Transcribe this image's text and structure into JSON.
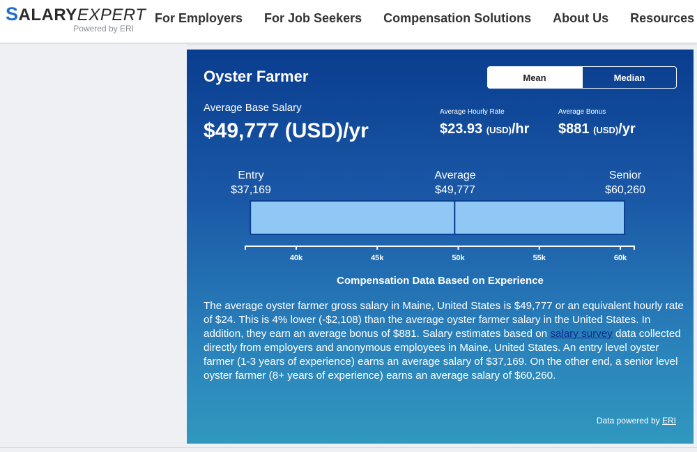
{
  "header": {
    "logo": {
      "s": "S",
      "salary": "ALARY",
      "expert": "EXPERT",
      "sub": "Powered by ERI"
    },
    "nav": [
      "For Employers",
      "For Job Seekers",
      "Compensation Solutions",
      "About Us",
      "Resources"
    ]
  },
  "card": {
    "title": "Oyster Farmer",
    "toggle": {
      "mean": "Mean",
      "median": "Median",
      "selected": "Mean"
    },
    "base": {
      "label": "Average Base Salary",
      "value": "$49,777 (USD)/yr"
    },
    "hourly": {
      "label": "Average Hourly Rate",
      "amount": "$23.93",
      "unit": "(USD)",
      "suffix": "/hr"
    },
    "bonus": {
      "label": "Average Bonus",
      "amount": "$881",
      "unit": "(USD)",
      "suffix": "/yr"
    },
    "range": {
      "entry": {
        "label": "Entry",
        "value": "$37,169"
      },
      "average": {
        "label": "Average",
        "value": "$49,777"
      },
      "senior": {
        "label": "Senior",
        "value": "$60,260"
      }
    },
    "caption": "Compensation Data Based on Experience",
    "description": {
      "part1": "The average oyster farmer gross salary in Maine, United States is $49,777 or an equivalent hourly rate of $24. This is 4% lower (-$2,108) than the average oyster farmer salary in the United States. In addition, they earn an average bonus of $881. Salary estimates based on ",
      "link": "salary survey",
      "part2": " data collected directly from employers and anonymous employees in Maine, United States. An entry level oyster farmer (1-3 years of experience) earns an average salary of $37,169. On the other end, a senior level oyster farmer (8+ years of experience) earns an average salary of $60,260."
    },
    "powered": {
      "text": "Data powered by ",
      "link": "ERI"
    }
  },
  "chart_data": {
    "type": "bar",
    "categories": [
      "Entry",
      "Average",
      "Senior"
    ],
    "values": [
      37169,
      49777,
      60260
    ],
    "xlabel": "",
    "ylabel": "",
    "x_ticks": [
      "40k",
      "45k",
      "50k",
      "55k",
      "60k"
    ],
    "tick_values": [
      40000,
      45000,
      50000,
      55000,
      60000
    ],
    "xlim": [
      37000,
      61000
    ],
    "title": "Compensation Data Based on Experience",
    "colors": {
      "bar": "#90c8f5",
      "bar_border": "#0b3f8f",
      "axis": "#ffffff"
    }
  }
}
